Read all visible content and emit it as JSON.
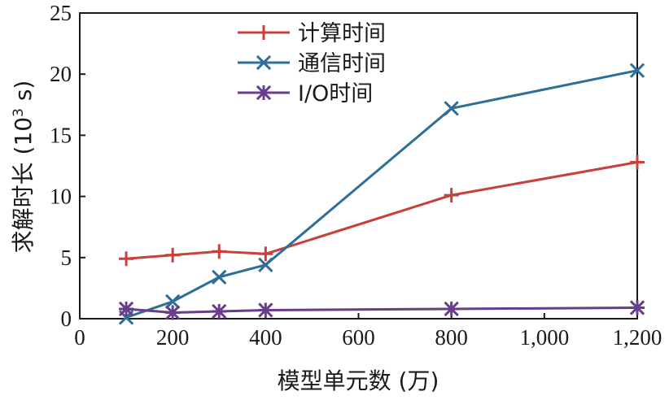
{
  "chart_data": {
    "type": "line",
    "title": "",
    "xlabel": "模型单元数 (万)",
    "ylabel_prefix": "求解时长 (10",
    "ylabel_sup": "3",
    "ylabel_suffix": " s)",
    "xlim": [
      0,
      1200
    ],
    "ylim": [
      0,
      25
    ],
    "x_ticks": [
      0,
      200,
      400,
      600,
      800,
      1000,
      1200
    ],
    "x_tick_labels": [
      "0",
      "200",
      "400",
      "600",
      "800",
      "1,000",
      "1,200"
    ],
    "y_ticks": [
      0,
      5,
      10,
      15,
      20,
      25
    ],
    "y_tick_labels": [
      "0",
      "5",
      "10",
      "15",
      "20",
      "25"
    ],
    "grid": false,
    "legend_position": "top-center",
    "series": [
      {
        "name": "计算时间",
        "color": "#c8403a",
        "marker": "plus",
        "x": [
          100,
          200,
          300,
          400,
          800,
          1200
        ],
        "y": [
          4.9,
          5.2,
          5.5,
          5.3,
          10.1,
          12.8
        ]
      },
      {
        "name": "通信时间",
        "color": "#2e6f98",
        "marker": "x",
        "x": [
          100,
          200,
          300,
          400,
          800,
          1200
        ],
        "y": [
          0.1,
          1.4,
          3.4,
          4.4,
          17.2,
          20.3
        ]
      },
      {
        "name": "I/O时间",
        "color": "#6a3c8c",
        "marker": "asterisk",
        "x": [
          100,
          200,
          300,
          400,
          800,
          1200
        ],
        "y": [
          0.8,
          0.5,
          0.6,
          0.7,
          0.8,
          0.9
        ]
      }
    ]
  }
}
